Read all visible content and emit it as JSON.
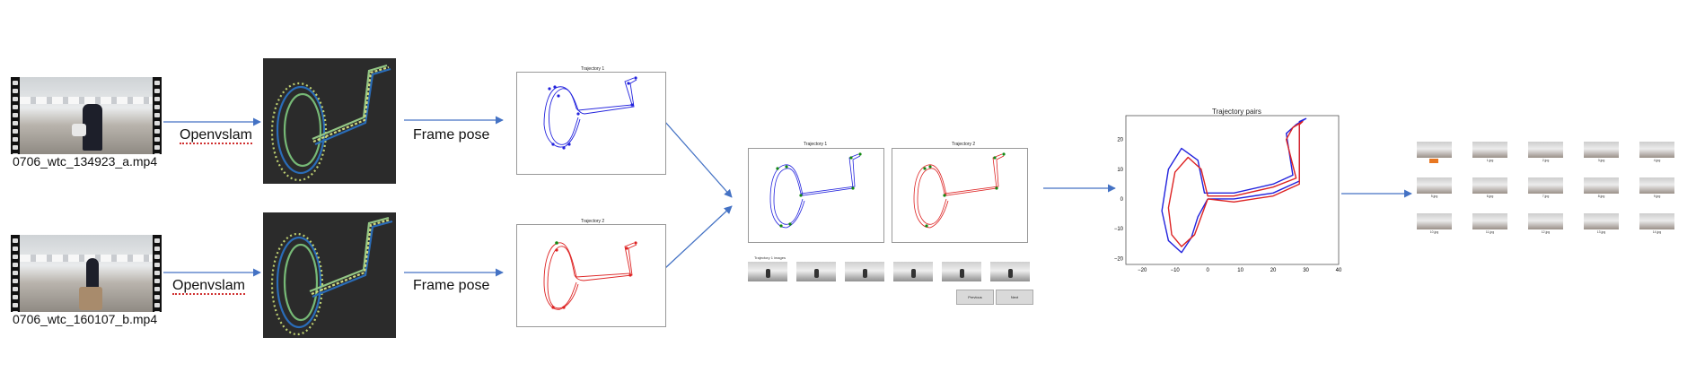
{
  "videos": [
    {
      "name": "0706_wtc_134923_a.mp4"
    },
    {
      "name": "0706_wtc_160107_b.mp4"
    }
  ],
  "steps": {
    "openvslam_top": "Openvslam",
    "openvslam_bottom": "Openvslam",
    "framepose_top": "Frame pose",
    "framepose_bottom": "Frame pose"
  },
  "plots": {
    "traj1_title": "Trajectory 1",
    "traj2_title": "Trajectory 2",
    "gui_traj1_title": "Trajectory 1",
    "gui_traj2_title": "Trajectory 2",
    "gui_images_label": "Trajectory 1 images",
    "pairs_title": "Trajectory pairs"
  },
  "buttons": {
    "previous": "Previous",
    "next": "Next"
  },
  "colors": {
    "traj1": "#2222dd",
    "traj2": "#dd2222",
    "keypoint": "#118811",
    "arrow": "#4472c4"
  },
  "chart_data": {
    "type": "line",
    "title": "Trajectory pairs",
    "xticks": [
      "−20",
      "−10",
      "0",
      "10",
      "20",
      "30",
      "40"
    ],
    "yticks": [
      "20",
      "10",
      "0",
      "−10",
      "−20"
    ],
    "xlim": [
      -25,
      40
    ],
    "ylim": [
      -22,
      28
    ],
    "series": [
      {
        "color": "#2222dd",
        "points": [
          [
            0,
            0
          ],
          [
            -3,
            -6
          ],
          [
            -5,
            -13
          ],
          [
            -8,
            -18
          ],
          [
            -12,
            -14
          ],
          [
            -14,
            -4
          ],
          [
            -12,
            10
          ],
          [
            -8,
            17
          ],
          [
            -3,
            13
          ],
          [
            -1,
            2
          ],
          [
            8,
            2
          ],
          [
            20,
            5
          ],
          [
            26,
            8
          ],
          [
            24,
            22
          ],
          [
            27,
            25
          ],
          [
            30,
            27
          ],
          [
            28,
            26
          ],
          [
            28,
            6
          ],
          [
            20,
            2
          ],
          [
            8,
            0
          ],
          [
            0,
            0
          ]
        ]
      },
      {
        "color": "#dd2222",
        "points": [
          [
            0,
            0
          ],
          [
            -2,
            -6
          ],
          [
            -4,
            -12
          ],
          [
            -8,
            -16
          ],
          [
            -11,
            -12
          ],
          [
            -12,
            -3
          ],
          [
            -10,
            9
          ],
          [
            -6,
            14
          ],
          [
            -2,
            10
          ],
          [
            0,
            1
          ],
          [
            8,
            1
          ],
          [
            20,
            4
          ],
          [
            27,
            7
          ],
          [
            24,
            20
          ],
          [
            26,
            24
          ],
          [
            29,
            26
          ],
          [
            28,
            25
          ],
          [
            28,
            5
          ],
          [
            20,
            1
          ],
          [
            8,
            -1
          ],
          [
            0,
            0
          ]
        ]
      }
    ]
  },
  "frame_grid": {
    "captions": [
      "",
      "1.jpg",
      "2.jpg",
      "3.jpg",
      "4.jpg",
      "5.jpg",
      "6.jpg",
      "7.jpg",
      "8.jpg",
      "9.jpg",
      "10.jpg",
      "11.jpg",
      "12.jpg",
      "13.jpg",
      "14.jpg"
    ]
  }
}
